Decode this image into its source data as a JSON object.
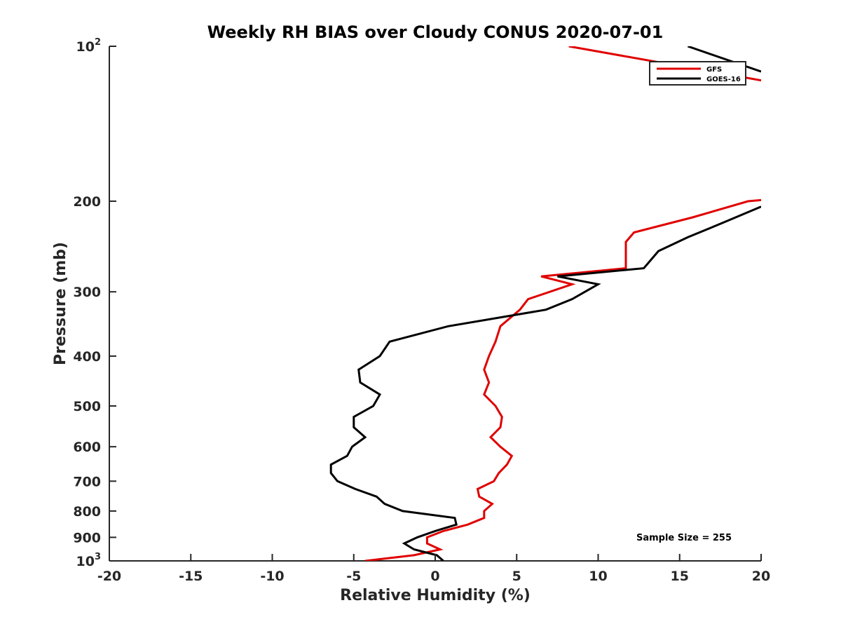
{
  "chart_data": {
    "type": "line",
    "title": "Weekly RH BIAS over Cloudy CONUS 2020-07-01",
    "xlabel": "Relative Humidity (%)",
    "ylabel": "Pressure (mb)",
    "xlim": [
      -20,
      20
    ],
    "ylim": [
      100,
      1000
    ],
    "y_scale": "log",
    "y_reversed": true,
    "grid": false,
    "legend_position": "top-right",
    "x_ticks": [
      "-20",
      "-15",
      "-10",
      "-5",
      "0",
      "5",
      "10",
      "15",
      "20"
    ],
    "y_ticks": [
      {
        "value": 100,
        "base": "10",
        "exp": "2"
      },
      {
        "value": 200,
        "label": "200"
      },
      {
        "value": 300,
        "label": "300"
      },
      {
        "value": 400,
        "label": "400"
      },
      {
        "value": 500,
        "label": "500"
      },
      {
        "value": 600,
        "label": "600"
      },
      {
        "value": 700,
        "label": "700"
      },
      {
        "value": 800,
        "label": "800"
      },
      {
        "value": 900,
        "label": "900"
      },
      {
        "value": 1000,
        "base": "10",
        "exp": "3"
      }
    ],
    "series": [
      {
        "name": "GFS",
        "color": "#e00000",
        "points": [
          [
            -4.3,
            1000
          ],
          [
            -1.3,
            975
          ],
          [
            0.3,
            950
          ],
          [
            -0.5,
            925
          ],
          [
            -0.5,
            900
          ],
          [
            0.5,
            875
          ],
          [
            2.0,
            850
          ],
          [
            3.0,
            825
          ],
          [
            3.0,
            800
          ],
          [
            3.5,
            775
          ],
          [
            2.7,
            750
          ],
          [
            2.6,
            725
          ],
          [
            3.6,
            700
          ],
          [
            3.9,
            675
          ],
          [
            4.4,
            650
          ],
          [
            4.7,
            625
          ],
          [
            4.0,
            600
          ],
          [
            3.4,
            575
          ],
          [
            4.0,
            550
          ],
          [
            4.1,
            525
          ],
          [
            3.7,
            500
          ],
          [
            3.0,
            475
          ],
          [
            3.3,
            450
          ],
          [
            3.0,
            425
          ],
          [
            3.3,
            400
          ],
          [
            3.7,
            375
          ],
          [
            4.0,
            350
          ],
          [
            5.2,
            325
          ],
          [
            5.7,
            310
          ],
          [
            8.4,
            290
          ],
          [
            6.5,
            280
          ],
          [
            11.7,
            270
          ],
          [
            11.7,
            240
          ],
          [
            12.2,
            230
          ],
          [
            15.8,
            215
          ],
          [
            19.2,
            200
          ],
          [
            20,
            199
          ]
        ],
        "upper_points": [
          [
            8.2,
            100
          ],
          [
            20,
            116.5
          ]
        ]
      },
      {
        "name": "GOES-16",
        "color": "#000000",
        "points": [
          [
            0.5,
            1000
          ],
          [
            0.1,
            975
          ],
          [
            -1.3,
            950
          ],
          [
            -1.9,
            925
          ],
          [
            -1.1,
            900
          ],
          [
            0.0,
            875
          ],
          [
            1.3,
            850
          ],
          [
            1.2,
            825
          ],
          [
            -2.0,
            800
          ],
          [
            -3.1,
            775
          ],
          [
            -3.6,
            750
          ],
          [
            -4.9,
            725
          ],
          [
            -6.0,
            700
          ],
          [
            -6.4,
            675
          ],
          [
            -6.4,
            650
          ],
          [
            -5.4,
            625
          ],
          [
            -5.1,
            600
          ],
          [
            -4.3,
            575
          ],
          [
            -5.0,
            550
          ],
          [
            -5.0,
            525
          ],
          [
            -3.8,
            500
          ],
          [
            -3.4,
            475
          ],
          [
            -4.6,
            450
          ],
          [
            -4.7,
            425
          ],
          [
            -3.4,
            400
          ],
          [
            -2.8,
            375
          ],
          [
            0.8,
            350
          ],
          [
            6.8,
            325
          ],
          [
            8.4,
            310
          ],
          [
            10.0,
            290
          ],
          [
            7.5,
            280
          ],
          [
            12.8,
            270
          ],
          [
            13.7,
            250
          ],
          [
            15.5,
            235
          ],
          [
            17.7,
            220
          ],
          [
            20,
            205
          ]
        ],
        "upper_points": [
          [
            15.5,
            100
          ],
          [
            20,
            112
          ]
        ]
      }
    ],
    "annotation": "Sample Size = 255"
  }
}
